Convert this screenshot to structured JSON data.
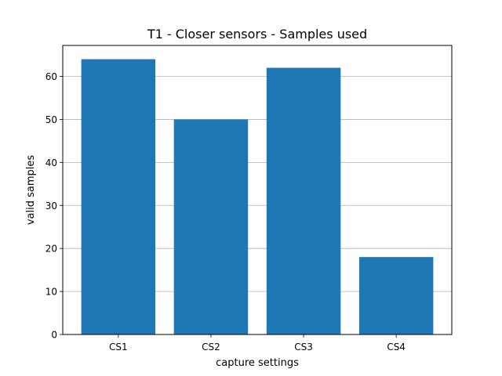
{
  "chart_data": {
    "type": "bar",
    "title": "T1 - Closer sensors - Samples used",
    "xlabel": "capture settings",
    "ylabel": "valid samples",
    "categories": [
      "CS1",
      "CS2",
      "CS3",
      "CS4"
    ],
    "values": [
      64,
      50,
      62,
      18
    ],
    "ylim": [
      0,
      67.2
    ],
    "yticks": [
      0,
      10,
      20,
      30,
      40,
      50,
      60
    ],
    "grid": "horizontal",
    "bar_color": "#1f77b4",
    "grid_color": "#b0b0b0"
  }
}
